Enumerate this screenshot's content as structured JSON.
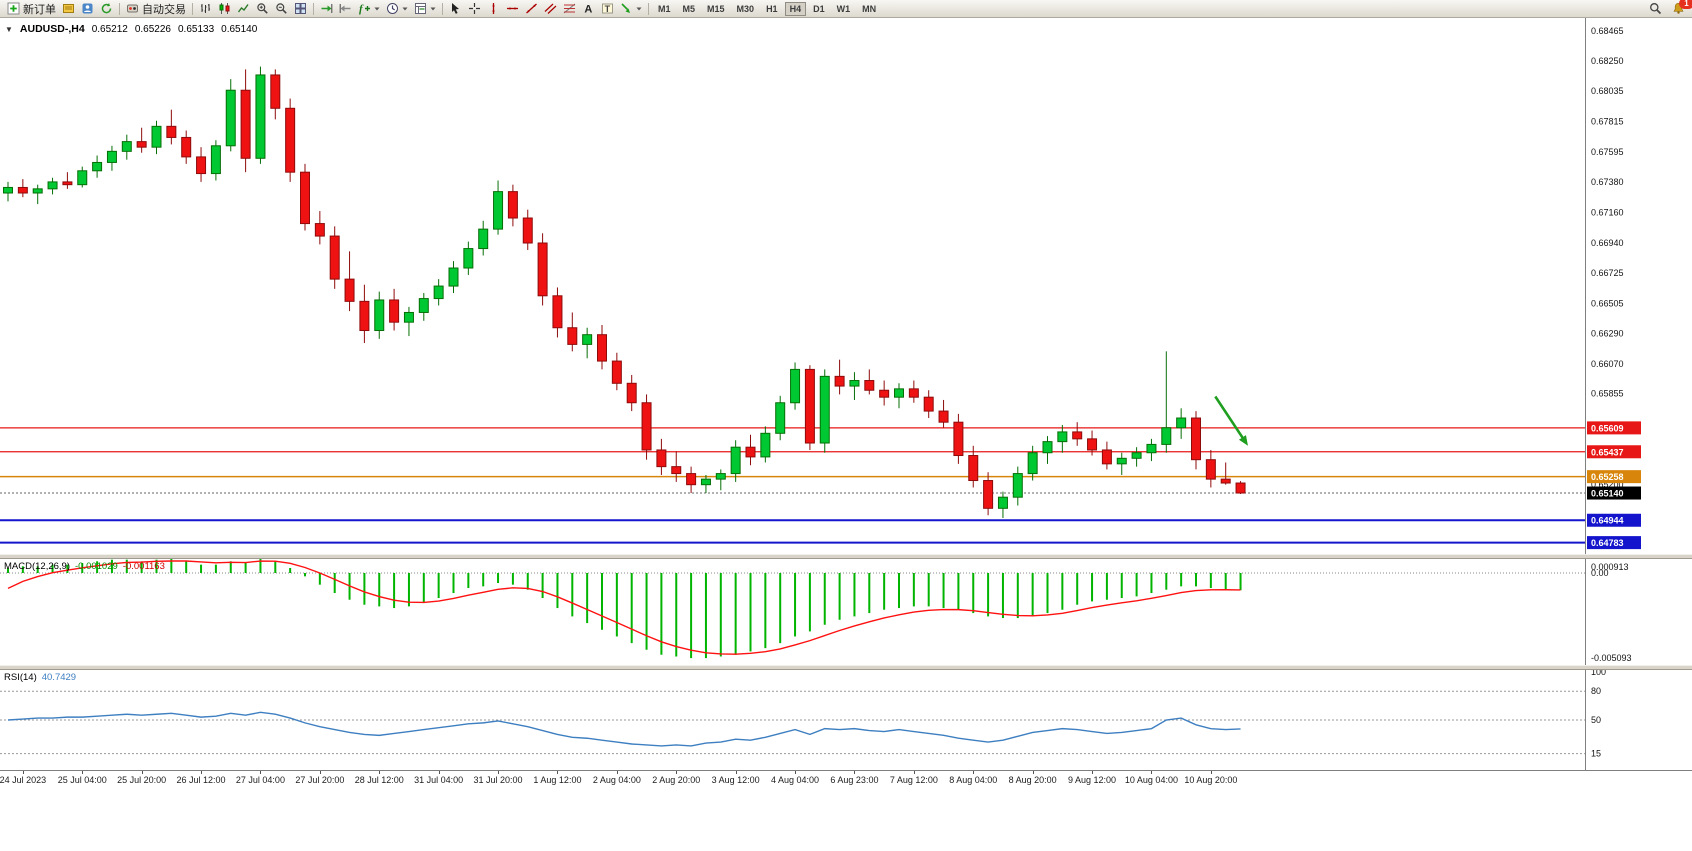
{
  "toolbar": {
    "new_order_label": "新订单",
    "autotrading_label": "自动交易",
    "timeframes": [
      "M1",
      "M5",
      "M15",
      "M30",
      "H1",
      "H4",
      "D1",
      "W1",
      "MN"
    ],
    "active_timeframe": "H4",
    "alert_badge": "1"
  },
  "chart": {
    "title": "AUDUSD-,H4",
    "ohlc": {
      "open": "0.65212",
      "high": "0.65226",
      "low": "0.65133",
      "close": "0.65140"
    },
    "grid_labels": [
      "0.68465",
      "0.68250",
      "0.68035",
      "0.67815",
      "0.67595",
      "0.67380",
      "0.67160",
      "0.66940",
      "0.66725",
      "0.66505",
      "0.66290",
      "0.66070",
      "0.65855",
      "0.65200"
    ],
    "hlines": [
      {
        "price": 0.65609,
        "label": "0.65609",
        "color": "#e81717",
        "width": 1.2
      },
      {
        "price": 0.65437,
        "label": "0.65437",
        "color": "#e81717",
        "width": 1.2
      },
      {
        "price": 0.65258,
        "label": "0.65258",
        "color": "#d8860b",
        "width": 1.6
      },
      {
        "price": 0.64944,
        "label": "0.64944",
        "color": "#1414cc",
        "width": 2
      },
      {
        "price": 0.64783,
        "label": "0.64783",
        "color": "#1414cc",
        "width": 2
      }
    ],
    "bid": {
      "price": 0.6514,
      "label": "0.65140",
      "color": "#000000"
    },
    "arrow": {
      "from_index": 81.3,
      "from_price": 0.65835,
      "to_index": 83.5,
      "to_price": 0.6548,
      "color": "#1f9e1f"
    }
  },
  "chart_data": {
    "type": "candlestick",
    "symbol": "AUDUSD-",
    "timeframe": "H4",
    "price_range": [
      0.64701,
      0.6856
    ],
    "candles": [
      [
        0.673,
        0.6738,
        0.6724,
        0.6734
      ],
      [
        0.6734,
        0.674,
        0.6727,
        0.673
      ],
      [
        0.673,
        0.6736,
        0.6722,
        0.6733
      ],
      [
        0.6733,
        0.6741,
        0.6729,
        0.6738
      ],
      [
        0.6738,
        0.6745,
        0.6733,
        0.6736
      ],
      [
        0.6736,
        0.6749,
        0.6734,
        0.6746
      ],
      [
        0.6746,
        0.6757,
        0.6741,
        0.6752
      ],
      [
        0.6752,
        0.6764,
        0.6746,
        0.676
      ],
      [
        0.676,
        0.6772,
        0.6754,
        0.6767
      ],
      [
        0.6767,
        0.6777,
        0.6759,
        0.6763
      ],
      [
        0.6763,
        0.6782,
        0.6758,
        0.6778
      ],
      [
        0.6778,
        0.679,
        0.6765,
        0.677
      ],
      [
        0.677,
        0.6775,
        0.6751,
        0.6756
      ],
      [
        0.6756,
        0.6763,
        0.6738,
        0.6744
      ],
      [
        0.6744,
        0.6768,
        0.6739,
        0.6764
      ],
      [
        0.6764,
        0.6812,
        0.676,
        0.6804
      ],
      [
        0.6804,
        0.6819,
        0.6745,
        0.6755
      ],
      [
        0.6755,
        0.6821,
        0.6751,
        0.6815
      ],
      [
        0.6815,
        0.6819,
        0.6783,
        0.6791
      ],
      [
        0.6791,
        0.6798,
        0.6738,
        0.6745
      ],
      [
        0.6745,
        0.6751,
        0.6703,
        0.6708
      ],
      [
        0.6708,
        0.6717,
        0.6693,
        0.6699
      ],
      [
        0.6699,
        0.6706,
        0.6661,
        0.6668
      ],
      [
        0.6668,
        0.6688,
        0.6645,
        0.6652
      ],
      [
        0.6652,
        0.6664,
        0.6622,
        0.6631
      ],
      [
        0.6631,
        0.6659,
        0.6625,
        0.6653
      ],
      [
        0.6653,
        0.6661,
        0.6631,
        0.6637
      ],
      [
        0.6637,
        0.6648,
        0.6627,
        0.6644
      ],
      [
        0.6644,
        0.6658,
        0.6638,
        0.6654
      ],
      [
        0.6654,
        0.6668,
        0.6649,
        0.6663
      ],
      [
        0.6663,
        0.6681,
        0.6658,
        0.6676
      ],
      [
        0.6676,
        0.6695,
        0.6671,
        0.669
      ],
      [
        0.669,
        0.671,
        0.6685,
        0.6704
      ],
      [
        0.6704,
        0.6739,
        0.67,
        0.6731
      ],
      [
        0.6731,
        0.6736,
        0.6706,
        0.6712
      ],
      [
        0.6712,
        0.6718,
        0.6689,
        0.6694
      ],
      [
        0.6694,
        0.6701,
        0.6649,
        0.6656
      ],
      [
        0.6656,
        0.6662,
        0.6626,
        0.6633
      ],
      [
        0.6633,
        0.6644,
        0.6616,
        0.6621
      ],
      [
        0.6621,
        0.6633,
        0.6611,
        0.6628
      ],
      [
        0.6628,
        0.6635,
        0.6603,
        0.6609
      ],
      [
        0.6609,
        0.6615,
        0.6588,
        0.6593
      ],
      [
        0.6593,
        0.6599,
        0.6573,
        0.6579
      ],
      [
        0.6579,
        0.6585,
        0.6538,
        0.6545
      ],
      [
        0.6545,
        0.6553,
        0.6527,
        0.6533
      ],
      [
        0.6533,
        0.6544,
        0.6522,
        0.6528
      ],
      [
        0.6528,
        0.6533,
        0.6514,
        0.652
      ],
      [
        0.652,
        0.6527,
        0.6514,
        0.6524
      ],
      [
        0.6524,
        0.6531,
        0.6516,
        0.6528
      ],
      [
        0.6528,
        0.6552,
        0.6522,
        0.6547
      ],
      [
        0.6547,
        0.6556,
        0.6534,
        0.654
      ],
      [
        0.654,
        0.6562,
        0.6536,
        0.6557
      ],
      [
        0.6557,
        0.6584,
        0.6552,
        0.6579
      ],
      [
        0.6579,
        0.6608,
        0.6574,
        0.6603
      ],
      [
        0.6603,
        0.6606,
        0.6545,
        0.655
      ],
      [
        0.655,
        0.6603,
        0.6543,
        0.6598
      ],
      [
        0.6598,
        0.661,
        0.6585,
        0.6591
      ],
      [
        0.6591,
        0.6601,
        0.6581,
        0.6595
      ],
      [
        0.6595,
        0.6603,
        0.6585,
        0.6588
      ],
      [
        0.6588,
        0.6595,
        0.6577,
        0.6583
      ],
      [
        0.6583,
        0.6593,
        0.6575,
        0.6589
      ],
      [
        0.6589,
        0.6595,
        0.6579,
        0.6583
      ],
      [
        0.6583,
        0.6588,
        0.6568,
        0.6573
      ],
      [
        0.6573,
        0.6581,
        0.6561,
        0.6565
      ],
      [
        0.6565,
        0.6571,
        0.6535,
        0.6541
      ],
      [
        0.6541,
        0.6548,
        0.6518,
        0.6523
      ],
      [
        0.6523,
        0.6529,
        0.6498,
        0.6503
      ],
      [
        0.6503,
        0.6515,
        0.6496,
        0.6511
      ],
      [
        0.6511,
        0.6533,
        0.6505,
        0.6528
      ],
      [
        0.6528,
        0.6548,
        0.6523,
        0.6543
      ],
      [
        0.6543,
        0.6555,
        0.6535,
        0.6551
      ],
      [
        0.6551,
        0.6563,
        0.6543,
        0.6558
      ],
      [
        0.6558,
        0.6565,
        0.6548,
        0.6553
      ],
      [
        0.6553,
        0.6559,
        0.6541,
        0.6545
      ],
      [
        0.6545,
        0.6551,
        0.6531,
        0.6535
      ],
      [
        0.6535,
        0.6543,
        0.6527,
        0.6539
      ],
      [
        0.6539,
        0.6547,
        0.6533,
        0.6543
      ],
      [
        0.6543,
        0.6553,
        0.6537,
        0.6549
      ],
      [
        0.6549,
        0.6616,
        0.6543,
        0.6561
      ],
      [
        0.6561,
        0.6575,
        0.6553,
        0.6568
      ],
      [
        0.6568,
        0.6573,
        0.6531,
        0.6538
      ],
      [
        0.6538,
        0.6545,
        0.6518,
        0.6524
      ],
      [
        0.6524,
        0.6536,
        0.652,
        0.65212
      ],
      [
        0.65212,
        0.65226,
        0.65133,
        0.6514
      ]
    ],
    "time_labels": [
      {
        "index": 1,
        "text": "24 Jul 2023"
      },
      {
        "index": 5,
        "text": "25 Jul 04:00"
      },
      {
        "index": 9,
        "text": "25 Jul 20:00"
      },
      {
        "index": 13,
        "text": "26 Jul 12:00"
      },
      {
        "index": 17,
        "text": "27 Jul 04:00"
      },
      {
        "index": 21,
        "text": "27 Jul 20:00"
      },
      {
        "index": 25,
        "text": "28 Jul 12:00"
      },
      {
        "index": 29,
        "text": "31 Jul 04:00"
      },
      {
        "index": 33,
        "text": "31 Jul 20:00"
      },
      {
        "index": 37,
        "text": "1 Aug 12:00"
      },
      {
        "index": 41,
        "text": "2 Aug 04:00"
      },
      {
        "index": 45,
        "text": "2 Aug 20:00"
      },
      {
        "index": 49,
        "text": "3 Aug 12:00"
      },
      {
        "index": 53,
        "text": "4 Aug 04:00"
      },
      {
        "index": 57,
        "text": "6 Aug 23:00"
      },
      {
        "index": 61,
        "text": "7 Aug 12:00"
      },
      {
        "index": 65,
        "text": "8 Aug 04:00"
      },
      {
        "index": 69,
        "text": "8 Aug 20:00"
      },
      {
        "index": 73,
        "text": "9 Aug 12:00"
      },
      {
        "index": 77,
        "text": "10 Aug 04:00"
      },
      {
        "index": 81,
        "text": "10 Aug 20:00"
      }
    ],
    "indicators": {
      "macd": {
        "label": "MACD(12,26,9)",
        "value_main": "-0.001029",
        "value_signal": "-0.001163",
        "histogram": [
          0.0003,
          0.0004,
          0.0004,
          0.0005,
          0.0005,
          0.0006,
          0.0007,
          0.0008,
          0.0008,
          0.0007,
          0.0008,
          0.0009,
          0.0007,
          0.0005,
          0.0005,
          0.0007,
          0.0006,
          0.0009,
          0.0007,
          0.0003,
          -0.0002,
          -0.0007,
          -0.0012,
          -0.0016,
          -0.0019,
          -0.002,
          -0.0021,
          -0.002,
          -0.0018,
          -0.0015,
          -0.0012,
          -0.0009,
          -0.0008,
          -0.0006,
          -0.0007,
          -0.001,
          -0.0015,
          -0.0021,
          -0.0026,
          -0.003,
          -0.0034,
          -0.0038,
          -0.0042,
          -0.0046,
          -0.0049,
          -0.005,
          -0.0051,
          -0.0051,
          -0.005,
          -0.0049,
          -0.0047,
          -0.0045,
          -0.0042,
          -0.0038,
          -0.0035,
          -0.0031,
          -0.0028,
          -0.0026,
          -0.0024,
          -0.0022,
          -0.0021,
          -0.002,
          -0.002,
          -0.0021,
          -0.0022,
          -0.0024,
          -0.0026,
          -0.0027,
          -0.0027,
          -0.0026,
          -0.0024,
          -0.0022,
          -0.0019,
          -0.0017,
          -0.0016,
          -0.0015,
          -0.0014,
          -0.0012,
          -0.001,
          -0.0008,
          -0.0008,
          -0.0009,
          -0.001,
          -0.001029
        ],
        "axis_labels": [
          {
            "text": "0.000913",
            "value": 0.000913
          },
          {
            "text": "0.00",
            "value": 0
          },
          {
            "text": "-0.005093",
            "value": -0.005093
          }
        ],
        "range": [
          -0.005093,
          0.000913
        ]
      },
      "rsi": {
        "label": "RSI(14)",
        "value": "40.7429",
        "values": [
          50,
          51,
          52,
          52,
          53,
          53,
          54,
          55,
          56,
          55,
          56,
          57,
          55,
          53,
          54,
          57,
          55,
          58,
          56,
          52,
          47,
          43,
          40,
          37,
          35,
          34,
          36,
          38,
          40,
          42,
          44,
          46,
          47,
          49,
          46,
          43,
          39,
          35,
          32,
          31,
          29,
          27,
          25,
          24,
          23,
          24,
          23,
          26,
          27,
          30,
          29,
          32,
          36,
          40,
          35,
          41,
          40,
          41,
          39,
          38,
          40,
          38,
          36,
          34,
          31,
          29,
          27,
          29,
          33,
          37,
          39,
          41,
          40,
          38,
          36,
          37,
          39,
          41,
          50,
          52,
          45,
          41,
          40,
          40.74
        ],
        "axis_labels": [
          {
            "text": "100",
            "value": 100
          },
          {
            "text": "80",
            "value": 80
          },
          {
            "text": "50",
            "value": 50
          },
          {
            "text": "15",
            "value": 15
          }
        ],
        "levels": [
          80,
          50,
          15
        ],
        "range": [
          0,
          100
        ]
      }
    }
  },
  "colors": {
    "up": "#00c832",
    "up_border": "#066e06",
    "down": "#ee1212",
    "down_border": "#8e0b0b",
    "macd_hist": "#00b400",
    "macd_signal": "#ff1111",
    "rsi_line": "#3e7fc1",
    "axis_text": "#141414"
  }
}
